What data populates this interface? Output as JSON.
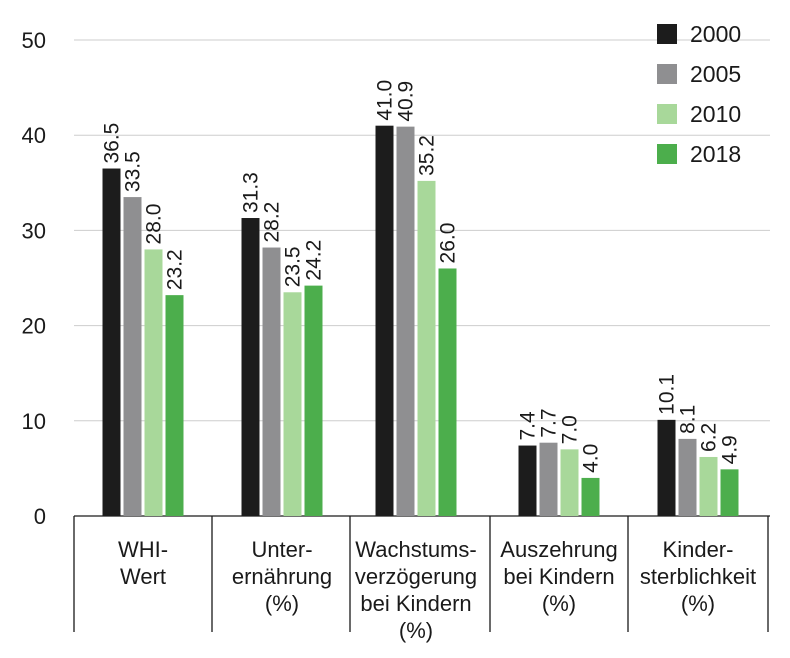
{
  "chart_data": {
    "type": "bar",
    "categories": [
      [
        "WHI-",
        "Wert"
      ],
      [
        "Unter-",
        "ernährung",
        "(%)"
      ],
      [
        "Wachstums-",
        "verzögerung",
        "bei Kindern",
        "(%)"
      ],
      [
        "Auszehrung",
        "bei Kindern",
        "(%)"
      ],
      [
        "Kinder-",
        "sterblichkeit",
        "(%)"
      ]
    ],
    "series": [
      {
        "name": "2000",
        "color": "#1c1c1c",
        "values": [
          36.5,
          31.3,
          41.0,
          7.4,
          10.1
        ],
        "labels": [
          "36.5",
          "31.3",
          "41.0",
          "7.4",
          "10.1"
        ]
      },
      {
        "name": "2005",
        "color": "#8f8f91",
        "values": [
          33.5,
          28.2,
          40.9,
          7.7,
          8.1
        ],
        "labels": [
          "33.5",
          "28.2",
          "40.9",
          "7.7",
          "8.1"
        ]
      },
      {
        "name": "2010",
        "color": "#a8d89a",
        "values": [
          28.0,
          23.5,
          35.2,
          7.0,
          6.2
        ],
        "labels": [
          "28.0",
          "23.5",
          "35.2",
          "7.0",
          "6.2"
        ]
      },
      {
        "name": "2018",
        "color": "#4cae4c",
        "values": [
          23.2,
          24.2,
          26.0,
          4.0,
          4.9
        ],
        "labels": [
          "23.2",
          "24.2",
          "26.0",
          "4.0",
          "4.9"
        ]
      }
    ],
    "yticks": [
      "0",
      "10",
      "20",
      "30",
      "40",
      "50"
    ],
    "ylim": [
      0,
      50
    ],
    "grid": true,
    "legend": "top-right",
    "title": "",
    "xlabel": "",
    "ylabel": ""
  }
}
